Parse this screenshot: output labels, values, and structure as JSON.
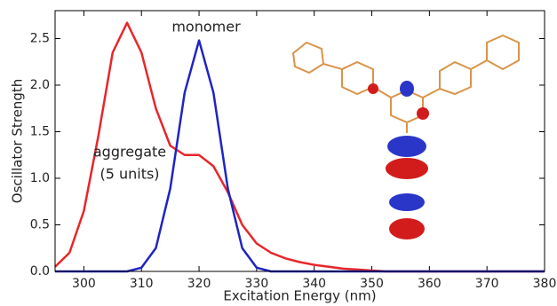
{
  "chart_data": {
    "type": "line",
    "x_label": "Excitation Energy (nm)",
    "y_label": "Oscillator Strength",
    "x": [
      295,
      297.5,
      300,
      302.5,
      305,
      307.5,
      310,
      312.5,
      315,
      317.5,
      320,
      322.5,
      325,
      327.5,
      330,
      332.5,
      335,
      337.5,
      340,
      342.5,
      345,
      347.5,
      350,
      352.5,
      355,
      357.5,
      360,
      362.5,
      365,
      367.5,
      370,
      372.5,
      375,
      377.5,
      380
    ],
    "series": [
      {
        "name": "aggregate",
        "color": "#e8262a",
        "values": [
          0.05,
          0.2,
          0.65,
          1.45,
          2.35,
          2.67,
          2.35,
          1.75,
          1.35,
          1.25,
          1.25,
          1.13,
          0.85,
          0.5,
          0.3,
          0.2,
          0.14,
          0.1,
          0.07,
          0.05,
          0.03,
          0.02,
          0.01,
          0,
          0,
          0,
          0,
          0,
          0,
          0,
          0,
          0,
          0,
          0,
          0
        ]
      },
      {
        "name": "monomer",
        "color": "#1f24c4",
        "values": [
          0,
          0,
          0,
          0,
          0,
          0,
          0.04,
          0.25,
          0.89,
          1.92,
          2.48,
          1.92,
          0.89,
          0.25,
          0.04,
          0,
          0,
          0,
          0,
          0,
          0,
          0,
          0,
          0,
          0,
          0,
          0,
          0,
          0,
          0,
          0,
          0,
          0,
          0,
          0
        ]
      }
    ],
    "annotations": [
      {
        "text": "monomer",
        "color": "#2a3a9a"
      },
      {
        "text": "aggregate",
        "color": "#e8262a"
      },
      {
        "text": "(5 units)",
        "color": "#e8262a"
      }
    ],
    "xlim": [
      295,
      380
    ],
    "ylim": [
      0,
      2.8
    ],
    "xticks": [
      300,
      310,
      320,
      330,
      340,
      350,
      360,
      370,
      380
    ],
    "yticks": [
      {
        "value": 0,
        "label": "0.0"
      },
      0.5,
      {
        "value": 1,
        "label": "1.0"
      },
      1.5,
      {
        "value": 2,
        "label": "2.0"
      },
      2.5
    ]
  }
}
